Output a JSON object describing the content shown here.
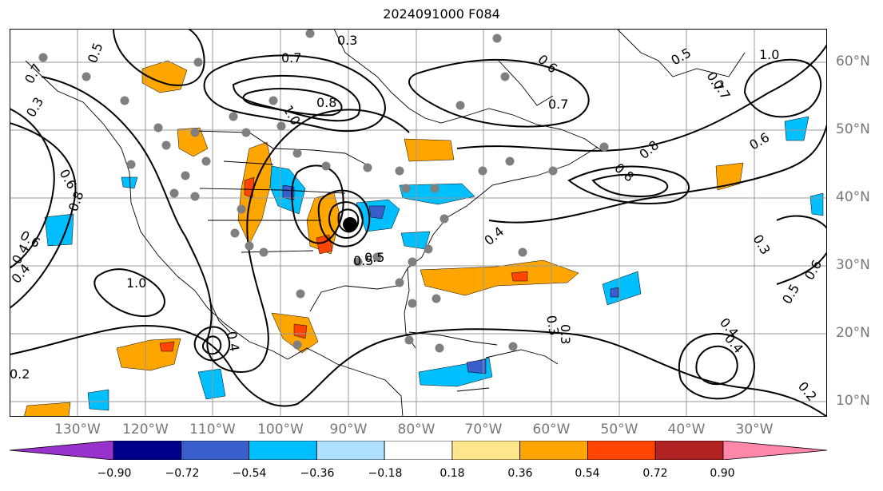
{
  "title": "2024091000 F084",
  "lon_labels": [
    "130°W",
    "120°W",
    "110°W",
    "100°W",
    "90°W",
    "80°W",
    "70°W",
    "60°W",
    "50°W",
    "40°W",
    "30°W"
  ],
  "lat_labels": [
    "60°N",
    "50°N",
    "40°N",
    "30°N",
    "20°N",
    "10°N"
  ],
  "colorbar": {
    "ticks": [
      "−0.90",
      "−0.72",
      "−0.54",
      "−0.36",
      "−0.18",
      "0.18",
      "0.36",
      "0.54",
      "0.72",
      "0.90"
    ],
    "colors": [
      "#9932cc",
      "#00008b",
      "#3a5fcd",
      "#00bfff",
      "#b0e2ff",
      "#ffffff",
      "#ffe68c",
      "#ffa500",
      "#ff4500",
      "#b22222",
      "#ff88aa"
    ]
  },
  "contour_labels": [
    "0.7",
    "0.5",
    "0.3",
    "0.6",
    "0.6",
    "0.8",
    "0.7",
    "0.7",
    "0.8",
    "0.8",
    "0.7",
    "0.6",
    "0.5",
    "0.4",
    "0.3",
    "1.0",
    "0.6",
    "0.5",
    "0.4",
    "0.4",
    "0.4",
    "0.8",
    "1.0",
    "1.0",
    "0.3",
    "0.4",
    "0.4",
    "0.2",
    "0.3",
    "0.5",
    "0.5",
    "0.6",
    "0.7",
    "0.3",
    "0.2"
  ]
}
